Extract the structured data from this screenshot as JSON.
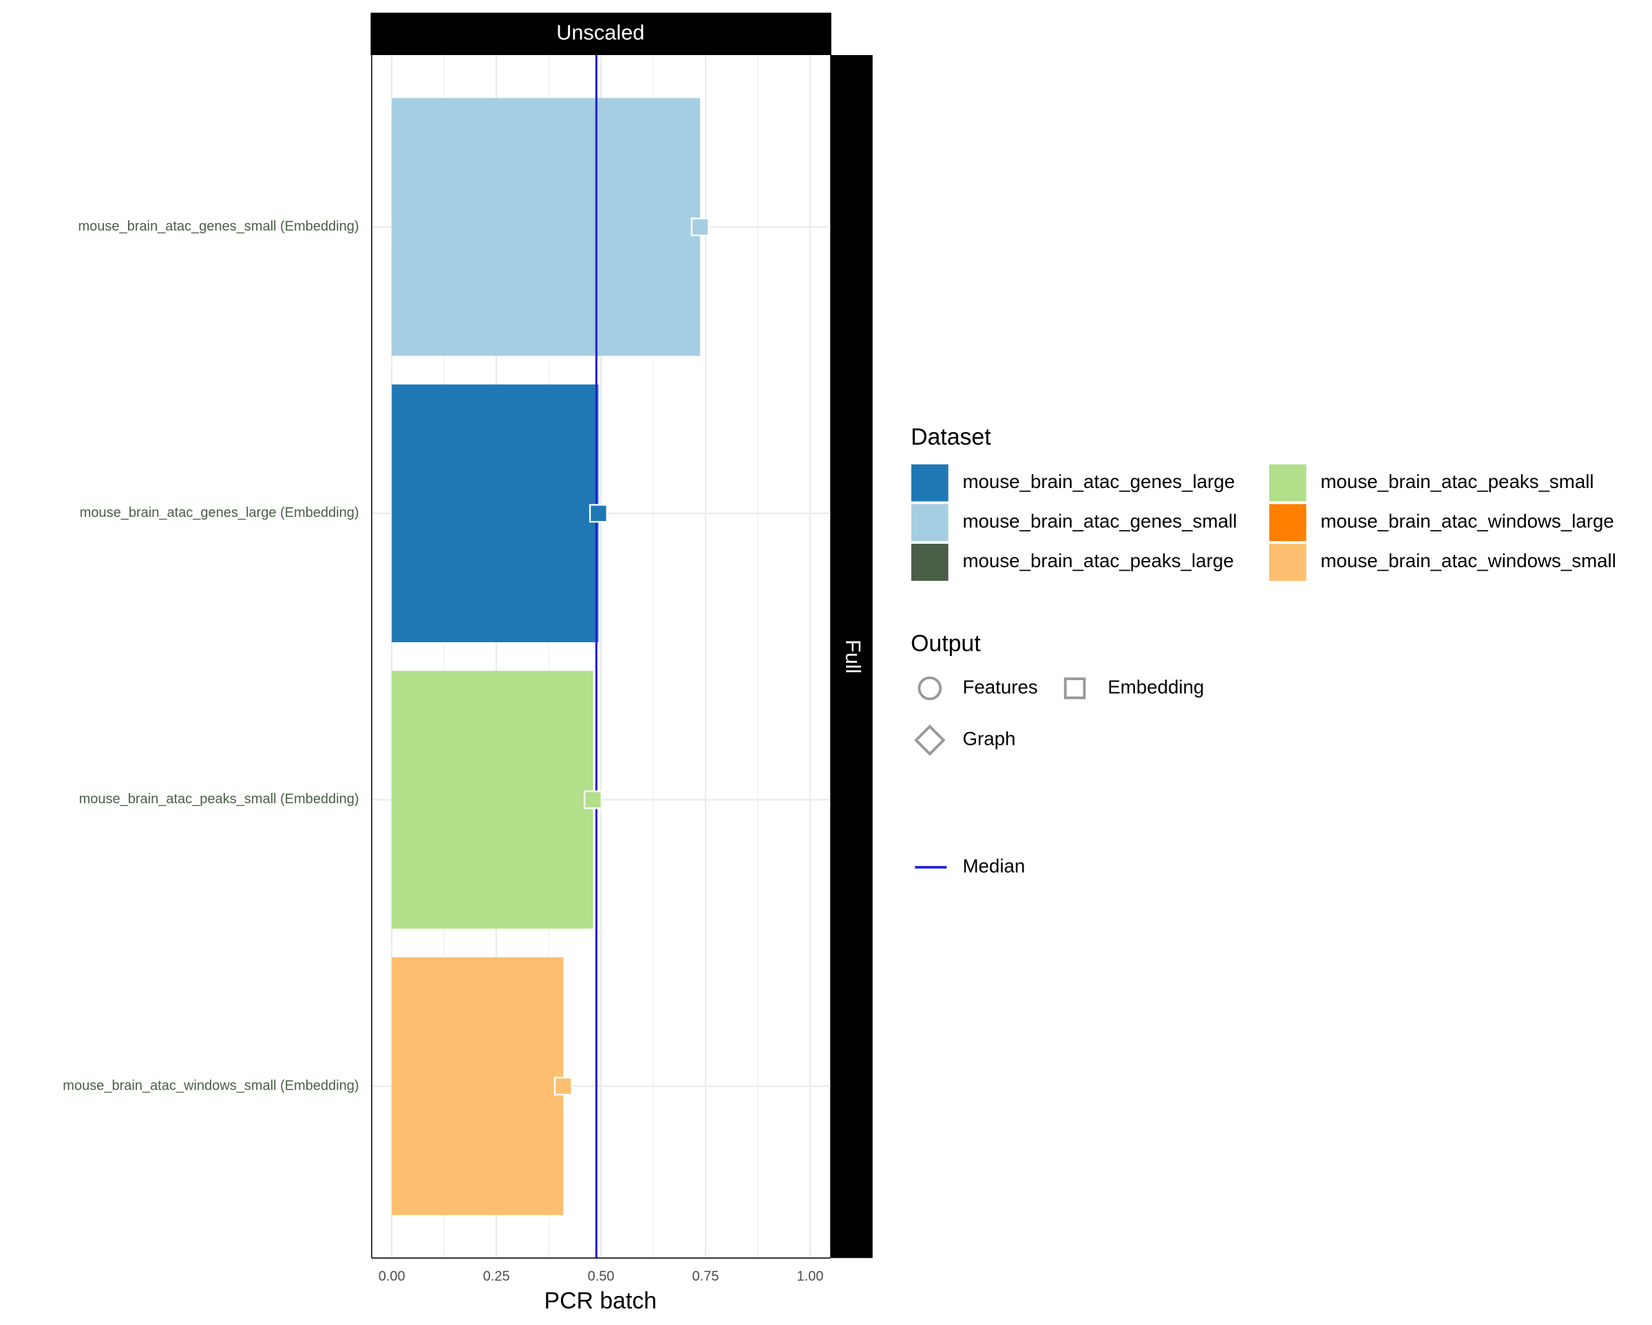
{
  "chart_data": {
    "type": "bar",
    "orientation": "horizontal",
    "facet_top": "Unscaled",
    "facet_right": "Full",
    "xlabel": "PCR batch",
    "categories": [
      "mouse_brain_atac_genes_small (Embedding)",
      "mouse_brain_atac_genes_large (Embedding)",
      "mouse_brain_atac_peaks_small (Embedding)",
      "mouse_brain_atac_windows_small (Embedding)"
    ],
    "values": [
      0.737,
      0.494,
      0.481,
      0.41
    ],
    "colors": [
      "#a6cee3",
      "#1f78b4",
      "#b2df8a",
      "#fdbf6f"
    ],
    "xlim": [
      -0.048,
      1.048
    ],
    "xticks": [
      {
        "value": 0,
        "label": "0.00"
      },
      {
        "value": 0.25,
        "label": "0.25"
      },
      {
        "value": 0.5,
        "label": "0.50"
      },
      {
        "value": 0.75,
        "label": "0.75"
      },
      {
        "value": 1,
        "label": "1.00"
      }
    ],
    "xminor": [
      0.125,
      0.375,
      0.625,
      0.875
    ],
    "grid": true,
    "median": 0.489,
    "median_color": "#2222dd",
    "legend": {
      "dataset_title": "Dataset",
      "datasets": [
        {
          "name": "mouse_brain_atac_genes_large",
          "color": "#1f78b4"
        },
        {
          "name": "mouse_brain_atac_genes_small",
          "color": "#a6cee3"
        },
        {
          "name": "mouse_brain_atac_peaks_large",
          "color": "#4a5e48"
        },
        {
          "name": "mouse_brain_atac_peaks_small",
          "color": "#b2df8a"
        },
        {
          "name": "mouse_brain_atac_windows_large",
          "color": "#ff7f00"
        },
        {
          "name": "mouse_brain_atac_windows_small",
          "color": "#fdbf6f"
        }
      ],
      "output_title": "Output",
      "outputs": [
        "Features",
        "Embedding",
        "Graph"
      ],
      "median_label": "Median"
    }
  }
}
